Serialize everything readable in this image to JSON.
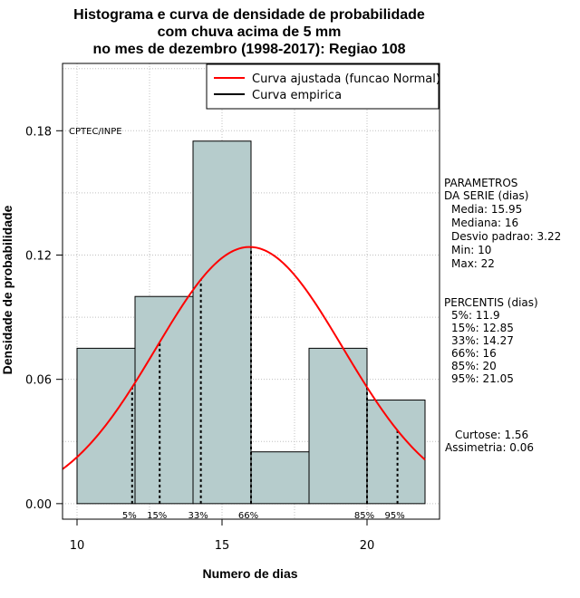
{
  "colors": {
    "bar_fill": "#b6cccc",
    "fit_curve": "#ff0000",
    "empirical": "#000000",
    "grid": "#c0c0c0"
  },
  "chart_data": {
    "type": "bar",
    "title_lines": [
      "Histograma e curva de densidade de probabilidade",
      "com chuva acima de 5 mm",
      "no mes de dezembro (1998-2017): Regiao 108"
    ],
    "xlabel": "Numero de dias",
    "ylabel": "Densidade de probabilidade",
    "xlim": [
      9.5,
      22.5
    ],
    "ylim": [
      -0.0075,
      0.2125
    ],
    "x_ticks": [
      10,
      15,
      20
    ],
    "y_ticks": [
      "0.00",
      "0.06",
      "0.12",
      "0.18"
    ],
    "bins": [
      {
        "start": 10,
        "end": 12,
        "density": 0.075
      },
      {
        "start": 12,
        "end": 14,
        "density": 0.1
      },
      {
        "start": 14,
        "end": 16,
        "density": 0.175
      },
      {
        "start": 16,
        "end": 18,
        "density": 0.025
      },
      {
        "start": 18,
        "end": 20,
        "density": 0.075
      },
      {
        "start": 20,
        "end": 22,
        "density": 0.05
      }
    ],
    "normal_fit": {
      "mean": 15.95,
      "sd": 3.22,
      "x_range": [
        9.5,
        22
      ]
    },
    "percentile_marks": [
      {
        "label": "5%",
        "x": 11.9
      },
      {
        "label": "15%",
        "x": 12.85
      },
      {
        "label": "33%",
        "x": 14.27
      },
      {
        "label": "66%",
        "x": 16
      },
      {
        "label": "85%",
        "x": 20
      },
      {
        "label": "95%",
        "x": 21.05
      }
    ],
    "legend": {
      "fit_label": "Curva ajustada (funcao Normal)",
      "empirical_label": "Curva empirica",
      "position": "top-right"
    },
    "source_label": "CPTEC/INPE",
    "grid": true
  },
  "side_panel": {
    "params_title_1": "PARAMETROS",
    "params_title_2": "DA SERIE (dias)",
    "params": [
      "Media: 15.95",
      "Mediana: 16",
      "Desvio padrao: 3.22",
      "Min: 10",
      "Max: 22"
    ],
    "pct_title": "PERCENTIS (dias)",
    "pcts": [
      "5%: 11.9",
      "15%: 12.85",
      "33%: 14.27",
      "66%: 16",
      "85%: 20",
      "95%: 21.05"
    ],
    "curtose": "Curtose: 1.56",
    "assimetria": "Assimetria: 0.06"
  }
}
